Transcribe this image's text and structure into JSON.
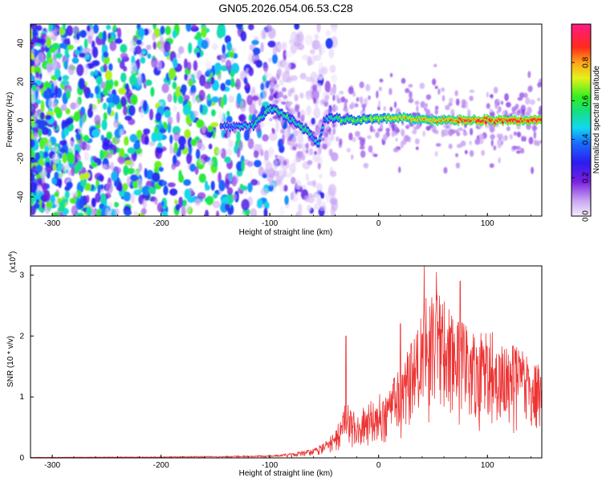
{
  "title": "GN05.2026.054.06.53.C28",
  "chart_data": [
    {
      "type": "heatmap",
      "xlabel": "Height of straight line (km)",
      "ylabel": "Frequency (Hz)",
      "xlim": [
        -320,
        150
      ],
      "ylim": [
        -50,
        50
      ],
      "xticks": [
        "-300",
        "-200",
        "-100",
        "0",
        "100"
      ],
      "yticks": [
        "-40",
        "-20",
        "0",
        "20",
        "40"
      ],
      "grid": false,
      "colorbar": {
        "label": "Normalized spectral amplitude",
        "range": [
          0,
          1
        ],
        "ticks": [
          "0.0",
          "0.2",
          "0.4",
          "0.6",
          "0.8"
        ]
      },
      "noise_region_x": [
        -320,
        -100
      ],
      "signal_ridge": {
        "x": [
          -145,
          -130,
          -115,
          -100,
          -95,
          -85,
          -75,
          -65,
          -60,
          -55,
          -50,
          -45,
          -40,
          -30,
          -20,
          0,
          25,
          50,
          75,
          100,
          125,
          150
        ],
        "freq_hz": [
          -3,
          -3,
          -3,
          6,
          5,
          2,
          -2,
          -6,
          -10,
          -12,
          0,
          2,
          1,
          0,
          0,
          1,
          1,
          0,
          0,
          0,
          0,
          0
        ],
        "amplitude": [
          0.4,
          0.45,
          0.5,
          0.55,
          0.55,
          0.55,
          0.55,
          0.55,
          0.5,
          0.5,
          0.45,
          0.5,
          0.6,
          0.6,
          0.65,
          0.7,
          0.75,
          0.78,
          0.85,
          0.9,
          0.9,
          0.9
        ]
      }
    },
    {
      "type": "line",
      "xlabel": "Height of straight line (km)",
      "ylabel": "SNR (10 * v/v)",
      "scale_label": "(x10",
      "scale_exp": "4",
      "scale_close": ")",
      "xlim": [
        -320,
        150
      ],
      "ylim": [
        0,
        3.15
      ],
      "xticks": [
        "-300",
        "-200",
        "-100",
        "0",
        "100"
      ],
      "yticks": [
        "0",
        "1",
        "2",
        "3"
      ],
      "grid": false,
      "series": [
        {
          "color": "#ee3333",
          "envelope": {
            "x": [
              -320,
              -200,
              -150,
              -100,
              -80,
              -60,
              -50,
              -40,
              -35,
              -30,
              -25,
              -20,
              -10,
              0,
              10,
              20,
              30,
              40,
              50,
              60,
              70,
              80,
              90,
              100,
              110,
              120,
              130,
              140,
              150
            ],
            "y": [
              0.01,
              0.02,
              0.03,
              0.04,
              0.08,
              0.15,
              0.25,
              0.45,
              0.7,
              1.0,
              0.8,
              0.75,
              0.9,
              1.05,
              1.2,
              1.5,
              1.9,
              2.5,
              2.9,
              2.6,
              2.3,
              2.2,
              2.0,
              2.15,
              2.0,
              1.9,
              1.8,
              1.6,
              1.5
            ]
          },
          "peaks": [
            {
              "x": -30,
              "y": 2.0
            },
            {
              "x": 20,
              "y": 2.2
            },
            {
              "x": 42,
              "y": 3.15
            },
            {
              "x": 53,
              "y": 3.05
            },
            {
              "x": 75,
              "y": 2.9
            }
          ]
        }
      ]
    }
  ]
}
